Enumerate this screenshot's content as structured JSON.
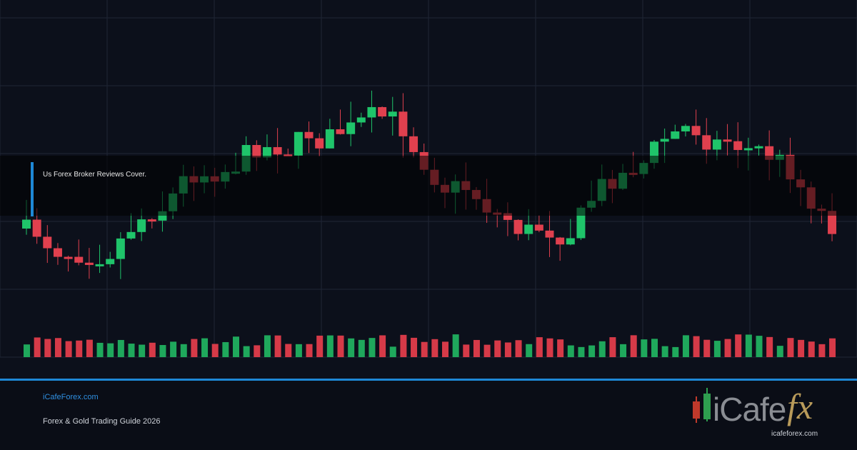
{
  "banner": {
    "caption": "Us Forex Broker Reviews Cover."
  },
  "footer": {
    "site": "iCafeForex.com",
    "subtitle": "Forex & Gold Trading Guide 2026"
  },
  "logo": {
    "word": "iCafe",
    "accent": "fx",
    "url": "icafeforex.com"
  }
}
